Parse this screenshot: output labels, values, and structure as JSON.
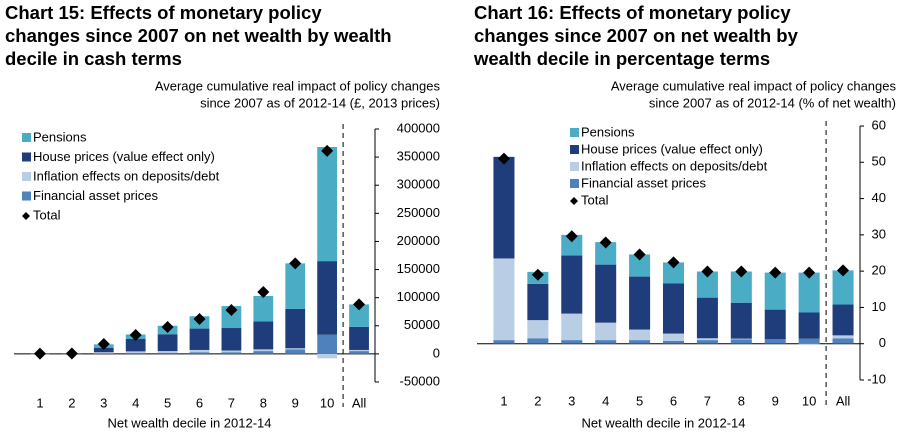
{
  "chart_data": [
    {
      "type": "bar",
      "stacked": true,
      "title": [
        "Chart 15: Effects of monetary policy",
        "changes since 2007 on net wealth by wealth",
        "decile in cash terms"
      ],
      "subtitle": [
        "Average cumulative real  impact of policy changes",
        "since 2007 as of 2012-14 (£, 2013 prices)"
      ],
      "x_label": "Net wealth decile in 2012-14",
      "categories": [
        "1",
        "2",
        "3",
        "4",
        "5",
        "6",
        "7",
        "8",
        "9",
        "10",
        "All"
      ],
      "series": [
        {
          "name": "Pensions",
          "color": "#4bacc6",
          "values": [
            300,
            300,
            6000,
            8000,
            15000,
            22000,
            39000,
            45000,
            81000,
            203000,
            40000
          ]
        },
        {
          "name": "House prices (value effect only)",
          "color": "#1f3d7a",
          "values": [
            500,
            500,
            8000,
            22000,
            30000,
            38000,
            40000,
            50000,
            70000,
            131000,
            41000
          ]
        },
        {
          "name": "Inflation effects on deposits/debt",
          "color": "#b9cde5",
          "values": [
            -500,
            -300,
            2000,
            3000,
            3000,
            4000,
            3000,
            3000,
            2000,
            -8000,
            2000
          ]
        },
        {
          "name": "Financial asset prices",
          "color": "#4f81bd",
          "values": [
            200,
            300,
            1000,
            1500,
            2000,
            3000,
            3000,
            5000,
            8000,
            34000,
            5000
          ]
        }
      ],
      "total": {
        "name": "Total",
        "color": "#000000",
        "values": [
          500,
          800,
          17700,
          33600,
          47800,
          62000,
          78000,
          110000,
          161000,
          361000,
          88000
        ]
      },
      "ylim": [
        -50000,
        400000
      ],
      "yticks": [
        -50000,
        0,
        50000,
        100000,
        150000,
        200000,
        250000,
        300000,
        350000,
        400000
      ]
    },
    {
      "type": "bar",
      "stacked": true,
      "title": [
        "Chart 16: Effects of monetary policy",
        "changes since 2007 on net wealth by",
        "wealth decile in percentage terms"
      ],
      "subtitle": [
        "Average cumulative real  impact of policy changes",
        "since 2007 as of 2012-14 (% of net wealth)"
      ],
      "x_label": "Net wealth decile in 2012-14",
      "categories": [
        "1",
        "2",
        "3",
        "4",
        "5",
        "6",
        "7",
        "8",
        "9",
        "10",
        "All"
      ],
      "series": [
        {
          "name": "Pensions",
          "color": "#4bacc6",
          "values": [
            0,
            3.3,
            5.7,
            6.2,
            6.1,
            5.8,
            7.2,
            8.6,
            10.2,
            11,
            9.4
          ]
        },
        {
          "name": "House prices (value effect only)",
          "color": "#1f3d7a",
          "values": [
            28,
            10,
            16,
            16,
            14.6,
            13.8,
            11.2,
            9.9,
            8.1,
            7.2,
            8.5
          ]
        },
        {
          "name": "Inflation effects on deposits/debt",
          "color": "#b9cde5",
          "values": [
            22.5,
            5,
            7.3,
            4.8,
            2.9,
            2,
            0.5,
            0.2,
            0,
            -0.3,
            0.8
          ]
        },
        {
          "name": "Financial asset prices",
          "color": "#4f81bd",
          "values": [
            1,
            1.5,
            1,
            1,
            1,
            0.8,
            1,
            1.2,
            1.3,
            1.4,
            1.5
          ]
        }
      ],
      "total": {
        "name": "Total",
        "color": "#000000",
        "values": [
          51,
          19,
          29.6,
          27.9,
          24.6,
          22.4,
          19.9,
          19.9,
          19.6,
          19.6,
          20.2
        ]
      },
      "ylim": [
        -10,
        60
      ],
      "yticks": [
        -10,
        0,
        10,
        20,
        30,
        40,
        50,
        60
      ]
    }
  ]
}
